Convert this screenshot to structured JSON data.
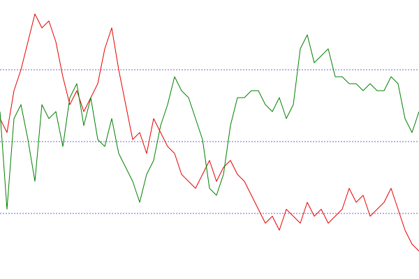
{
  "chart_data": {
    "type": "line",
    "ylim": [
      0,
      400
    ],
    "grid_lines": [
      94,
      197,
      300
    ],
    "grid_color": "#3333cc",
    "series": [
      {
        "color": "#e60000",
        "values": [
          230,
          210,
          270,
          300,
          340,
          380,
          360,
          370,
          340,
          290,
          250,
          270,
          240,
          260,
          280,
          330,
          360,
          300,
          250,
          200,
          210,
          180,
          230,
          210,
          190,
          180,
          150,
          140,
          130,
          150,
          170,
          140,
          160,
          170,
          150,
          140,
          120,
          100,
          80,
          90,
          70,
          100,
          90,
          80,
          110,
          90,
          100,
          80,
          90,
          100,
          130,
          110,
          120,
          90,
          100,
          110,
          130,
          100,
          70,
          50,
          40
        ]
      },
      {
        "color": "#008000",
        "values": [
          240,
          100,
          230,
          250,
          200,
          140,
          250,
          230,
          240,
          190,
          260,
          280,
          220,
          260,
          200,
          190,
          230,
          180,
          160,
          140,
          110,
          150,
          170,
          220,
          250,
          290,
          270,
          260,
          230,
          200,
          130,
          120,
          150,
          220,
          260,
          260,
          270,
          270,
          250,
          240,
          260,
          230,
          250,
          330,
          350,
          310,
          320,
          330,
          290,
          290,
          280,
          280,
          270,
          280,
          270,
          270,
          290,
          280,
          230,
          210,
          240
        ]
      }
    ]
  }
}
